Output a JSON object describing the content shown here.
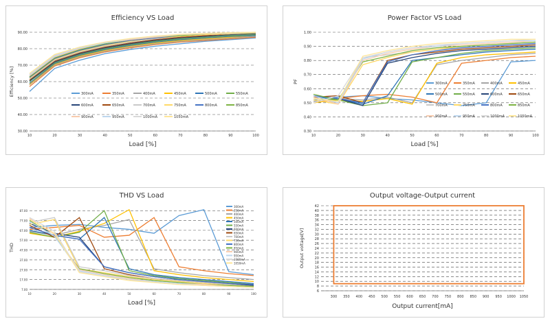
{
  "chart_data": [
    {
      "id": "eff",
      "type": "line",
      "title": "Efficiency VS Load",
      "xlabel": "Load [%]",
      "ylabel": "Efficiency [%]",
      "xlim": [
        10,
        100
      ],
      "ylim": [
        30,
        90
      ],
      "xticks": [
        10,
        20,
        30,
        40,
        50,
        60,
        70,
        80,
        90,
        100
      ],
      "yticks": [
        30,
        40,
        50,
        60,
        70,
        80,
        90
      ],
      "ytick_labels": [
        "30.00",
        "40.00",
        "50.00",
        "60.00",
        "70.00",
        "80.00",
        "90.00"
      ],
      "legend_position": "center",
      "legend_columns": 6,
      "x": [
        10,
        20,
        30,
        40,
        50,
        60,
        70,
        80,
        90,
        100
      ],
      "series": [
        {
          "name": "300mA",
          "color": "#5b9bd5",
          "values": [
            54,
            68,
            73,
            77,
            79.5,
            81.5,
            83,
            84.5,
            85.5,
            86.5
          ]
        },
        {
          "name": "350mA",
          "color": "#ed7d31",
          "values": [
            57,
            69.5,
            74.5,
            78,
            80.5,
            82.5,
            84,
            85,
            86,
            87
          ]
        },
        {
          "name": "400mA",
          "color": "#a5a5a5",
          "values": [
            58,
            70,
            75,
            78.5,
            81,
            83,
            84.5,
            85.5,
            86.5,
            87.5
          ]
        },
        {
          "name": "450mA",
          "color": "#ffc000",
          "values": [
            58.5,
            70.5,
            75.5,
            79,
            81.5,
            83.5,
            85,
            86,
            87,
            88
          ]
        },
        {
          "name": "500mA",
          "color": "#2e75b6",
          "values": [
            59,
            71,
            76,
            79.5,
            82,
            84,
            85.5,
            86.5,
            87.5,
            88
          ]
        },
        {
          "name": "550mA",
          "color": "#70ad47",
          "values": [
            60,
            71.5,
            76.5,
            80,
            82.5,
            84.5,
            86,
            87,
            88,
            88.5
          ]
        },
        {
          "name": "600mA",
          "color": "#264478",
          "values": [
            60.5,
            72,
            77,
            80.5,
            83,
            85,
            86.5,
            87.5,
            88.5,
            89
          ]
        },
        {
          "name": "650mA",
          "color": "#9e480e",
          "values": [
            61,
            72.5,
            77.5,
            81,
            83.5,
            85.5,
            87,
            88,
            89,
            89.5
          ]
        },
        {
          "name": "700mA",
          "color": "#c9c9c9",
          "values": [
            61.5,
            73,
            78,
            81.5,
            84,
            86,
            87.5,
            88.5,
            89,
            89.5
          ]
        },
        {
          "name": "750mA",
          "color": "#ffd966",
          "values": [
            62,
            73.5,
            78.5,
            82,
            84.5,
            86.5,
            87.5,
            88.5,
            89,
            89.5
          ]
        },
        {
          "name": "800mA",
          "color": "#4472c4",
          "values": [
            62.5,
            74,
            79,
            82.5,
            85,
            86.5,
            88,
            89,
            89.5,
            89.8
          ]
        },
        {
          "name": "850mA",
          "color": "#7cb342",
          "values": [
            63,
            74.5,
            79.5,
            83,
            85.5,
            87,
            88,
            89,
            89.5,
            89.8
          ]
        },
        {
          "name": "900mA",
          "color": "#f8cbad",
          "values": [
            63.5,
            75,
            80,
            83.5,
            85.5,
            87,
            88.5,
            89,
            89.5,
            90
          ]
        },
        {
          "name": "950mA",
          "color": "#bdd7ee",
          "values": [
            64,
            75.5,
            80.5,
            83.5,
            86,
            87.5,
            88.5,
            89.2,
            89.6,
            90
          ]
        },
        {
          "name": "1000mA",
          "color": "#d9d9d9",
          "values": [
            64.5,
            76,
            81,
            84,
            86,
            87.5,
            88.5,
            89.2,
            89.7,
            90
          ]
        },
        {
          "name": "1050mA",
          "color": "#ffe699",
          "values": [
            65,
            76.5,
            81,
            84,
            86.2,
            87.7,
            88.7,
            89.3,
            89.8,
            90
          ]
        }
      ]
    },
    {
      "id": "pf",
      "type": "line",
      "title": "Power Factor VS Load",
      "xlabel": "Load [%]",
      "ylabel": "PF",
      "xlim": [
        10,
        100
      ],
      "ylim": [
        0.3,
        1.0
      ],
      "xticks": [
        10,
        20,
        30,
        40,
        50,
        60,
        70,
        80,
        90,
        100
      ],
      "yticks": [
        0.3,
        0.4,
        0.5,
        0.6,
        0.7,
        0.8,
        0.9,
        1.0
      ],
      "ytick_labels": [
        "0.30",
        "0.40",
        "0.50",
        "0.60",
        "0.70",
        "0.80",
        "0.90",
        "1.00"
      ],
      "legend_position": "right",
      "legend_columns": 4,
      "x": [
        10,
        20,
        30,
        40,
        50,
        60,
        70,
        80,
        90,
        100
      ],
      "series": [
        {
          "name": "300mA",
          "color": "#5b9bd5",
          "values": [
            0.52,
            0.54,
            0.55,
            0.53,
            0.52,
            0.5,
            0.48,
            0.5,
            0.79,
            0.8
          ]
        },
        {
          "name": "350mA",
          "color": "#ed7d31",
          "values": [
            0.5,
            0.53,
            0.55,
            0.56,
            0.54,
            0.5,
            0.78,
            0.8,
            0.82,
            0.83
          ]
        },
        {
          "name": "400mA",
          "color": "#a5a5a5",
          "values": [
            0.51,
            0.53,
            0.52,
            0.54,
            0.5,
            0.77,
            0.8,
            0.82,
            0.84,
            0.85
          ]
        },
        {
          "name": "450mA",
          "color": "#ffc000",
          "values": [
            0.5,
            0.52,
            0.51,
            0.53,
            0.49,
            0.78,
            0.82,
            0.84,
            0.85,
            0.86
          ]
        },
        {
          "name": "500mA",
          "color": "#2e75b6",
          "values": [
            0.54,
            0.53,
            0.49,
            0.55,
            0.8,
            0.82,
            0.84,
            0.86,
            0.87,
            0.88
          ]
        },
        {
          "name": "550mA",
          "color": "#70ad47",
          "values": [
            0.53,
            0.52,
            0.48,
            0.5,
            0.79,
            0.82,
            0.85,
            0.87,
            0.88,
            0.89
          ]
        },
        {
          "name": "600mA",
          "color": "#264478",
          "values": [
            0.55,
            0.53,
            0.48,
            0.78,
            0.82,
            0.85,
            0.87,
            0.88,
            0.89,
            0.9
          ]
        },
        {
          "name": "650mA",
          "color": "#9e480e",
          "values": [
            0.54,
            0.55,
            0.5,
            0.8,
            0.84,
            0.86,
            0.88,
            0.89,
            0.9,
            0.91
          ]
        },
        {
          "name": "700mA",
          "color": "#c9c9c9",
          "values": [
            0.53,
            0.5,
            0.82,
            0.84,
            0.86,
            0.88,
            0.89,
            0.9,
            0.91,
            0.92
          ]
        },
        {
          "name": "750mA",
          "color": "#ffd966",
          "values": [
            0.52,
            0.49,
            0.77,
            0.82,
            0.86,
            0.88,
            0.9,
            0.91,
            0.92,
            0.93
          ]
        },
        {
          "name": "800mA",
          "color": "#4472c4",
          "values": [
            0.55,
            0.53,
            0.5,
            0.79,
            0.84,
            0.87,
            0.89,
            0.9,
            0.91,
            0.92
          ]
        },
        {
          "name": "850mA",
          "color": "#7cb342",
          "values": [
            0.56,
            0.52,
            0.79,
            0.83,
            0.87,
            0.89,
            0.9,
            0.91,
            0.92,
            0.93
          ]
        },
        {
          "name": "900mA",
          "color": "#f8cbad",
          "values": [
            0.54,
            0.49,
            0.8,
            0.85,
            0.88,
            0.9,
            0.91,
            0.92,
            0.93,
            0.94
          ]
        },
        {
          "name": "950mA",
          "color": "#bdd7ee",
          "values": [
            0.55,
            0.5,
            0.81,
            0.86,
            0.89,
            0.9,
            0.92,
            0.93,
            0.94,
            0.94
          ]
        },
        {
          "name": "1000mA",
          "color": "#d9d9d9",
          "values": [
            0.5,
            0.55,
            0.82,
            0.86,
            0.89,
            0.91,
            0.92,
            0.93,
            0.94,
            0.95
          ]
        },
        {
          "name": "1050mA",
          "color": "#ffe699",
          "values": [
            0.53,
            0.51,
            0.83,
            0.87,
            0.9,
            0.92,
            0.93,
            0.94,
            0.95,
            0.95
          ]
        }
      ]
    },
    {
      "id": "thd",
      "type": "line",
      "title": "THD VS Load",
      "xlabel": "Load [%]",
      "ylabel": "THD",
      "xlim": [
        10,
        100
      ],
      "ylim": [
        7,
        92
      ],
      "xticks": [
        10,
        20,
        30,
        40,
        50,
        60,
        70,
        80,
        90,
        100
      ],
      "yticks": [
        7,
        17,
        27,
        37,
        47,
        57,
        67,
        77,
        87
      ],
      "ytick_labels": [
        "7.00",
        "17.00",
        "27.00",
        "37.00",
        "47.00",
        "57.00",
        "67.00",
        "77.00",
        "87.00"
      ],
      "legend_position": "right",
      "legend_columns": 1,
      "x": [
        10,
        20,
        30,
        40,
        50,
        60,
        70,
        80,
        90,
        100
      ],
      "series": [
        {
          "name": "300mA",
          "color": "#5b9bd5",
          "values": [
            70,
            72,
            73,
            70,
            68,
            64,
            82,
            88,
            25,
            22
          ]
        },
        {
          "name": "350mA",
          "color": "#ed7d31",
          "values": [
            68,
            70,
            72,
            60,
            62,
            80,
            30,
            26,
            23,
            21
          ]
        },
        {
          "name": "400mA",
          "color": "#a5a5a5",
          "values": [
            66,
            62,
            68,
            72,
            78,
            28,
            24,
            21,
            19,
            17
          ]
        },
        {
          "name": "450mA",
          "color": "#ffc000",
          "values": [
            64,
            60,
            66,
            74,
            88,
            26,
            22,
            19,
            17,
            15
          ]
        },
        {
          "name": "500mA",
          "color": "#2e75b6",
          "values": [
            67,
            62,
            58,
            80,
            28,
            22,
            19,
            17,
            15,
            13
          ]
        },
        {
          "name": "550mA",
          "color": "#70ad47",
          "values": [
            65,
            60,
            65,
            87,
            26,
            21,
            18,
            16,
            14,
            12
          ]
        },
        {
          "name": "600mA",
          "color": "#264478",
          "values": [
            74,
            64,
            60,
            30,
            24,
            20,
            17,
            15,
            13,
            11
          ]
        },
        {
          "name": "650mA",
          "color": "#9e480e",
          "values": [
            72,
            60,
            80,
            28,
            22,
            18,
            16,
            14,
            12,
            10
          ]
        },
        {
          "name": "700mA",
          "color": "#c9c9c9",
          "values": [
            75,
            80,
            30,
            26,
            21,
            18,
            16,
            14,
            12,
            10
          ]
        },
        {
          "name": "750mA",
          "color": "#ffd966",
          "values": [
            73,
            78,
            28,
            24,
            20,
            17,
            15,
            13,
            11,
            10
          ]
        },
        {
          "name": "800mA",
          "color": "#4472c4",
          "values": [
            70,
            62,
            58,
            30,
            24,
            20,
            17,
            15,
            13,
            12
          ]
        },
        {
          "name": "850mA",
          "color": "#7cb342",
          "values": [
            77,
            61,
            28,
            23,
            19,
            16,
            14,
            12,
            11,
            10
          ]
        },
        {
          "name": "900mA",
          "color": "#f8cbad",
          "values": [
            79,
            63,
            27,
            22,
            18,
            15,
            13,
            12,
            10,
            9
          ]
        },
        {
          "name": "950mA",
          "color": "#bdd7ee",
          "values": [
            76,
            61,
            26,
            21,
            17,
            15,
            13,
            11,
            10,
            9
          ]
        },
        {
          "name": "1000mA",
          "color": "#d9d9d9",
          "values": [
            80,
            66,
            25,
            20,
            17,
            14,
            12,
            11,
            10,
            9
          ]
        },
        {
          "name": "1050mA",
          "color": "#ffe699",
          "values": [
            78,
            64,
            24,
            20,
            16,
            14,
            12,
            11,
            10,
            9
          ]
        }
      ]
    },
    {
      "id": "ovc",
      "type": "area",
      "title": "Output voltage-Output current",
      "xlabel": "Output current[mA]",
      "ylabel": "Output voltage[V]",
      "xlim": [
        250,
        1050
      ],
      "ylim": [
        6,
        42
      ],
      "xticks": [
        300,
        350,
        400,
        450,
        500,
        550,
        600,
        650,
        700,
        750,
        800,
        850,
        900,
        950,
        1000,
        1050
      ],
      "yticks": [
        6,
        8,
        10,
        12,
        14,
        16,
        18,
        20,
        22,
        24,
        26,
        28,
        30,
        32,
        34,
        36,
        38,
        40,
        42
      ],
      "operating_region": {
        "current_ma": [
          300,
          1050
        ],
        "voltage_v": [
          9,
          42
        ],
        "color": "#ed7d31"
      }
    }
  ]
}
